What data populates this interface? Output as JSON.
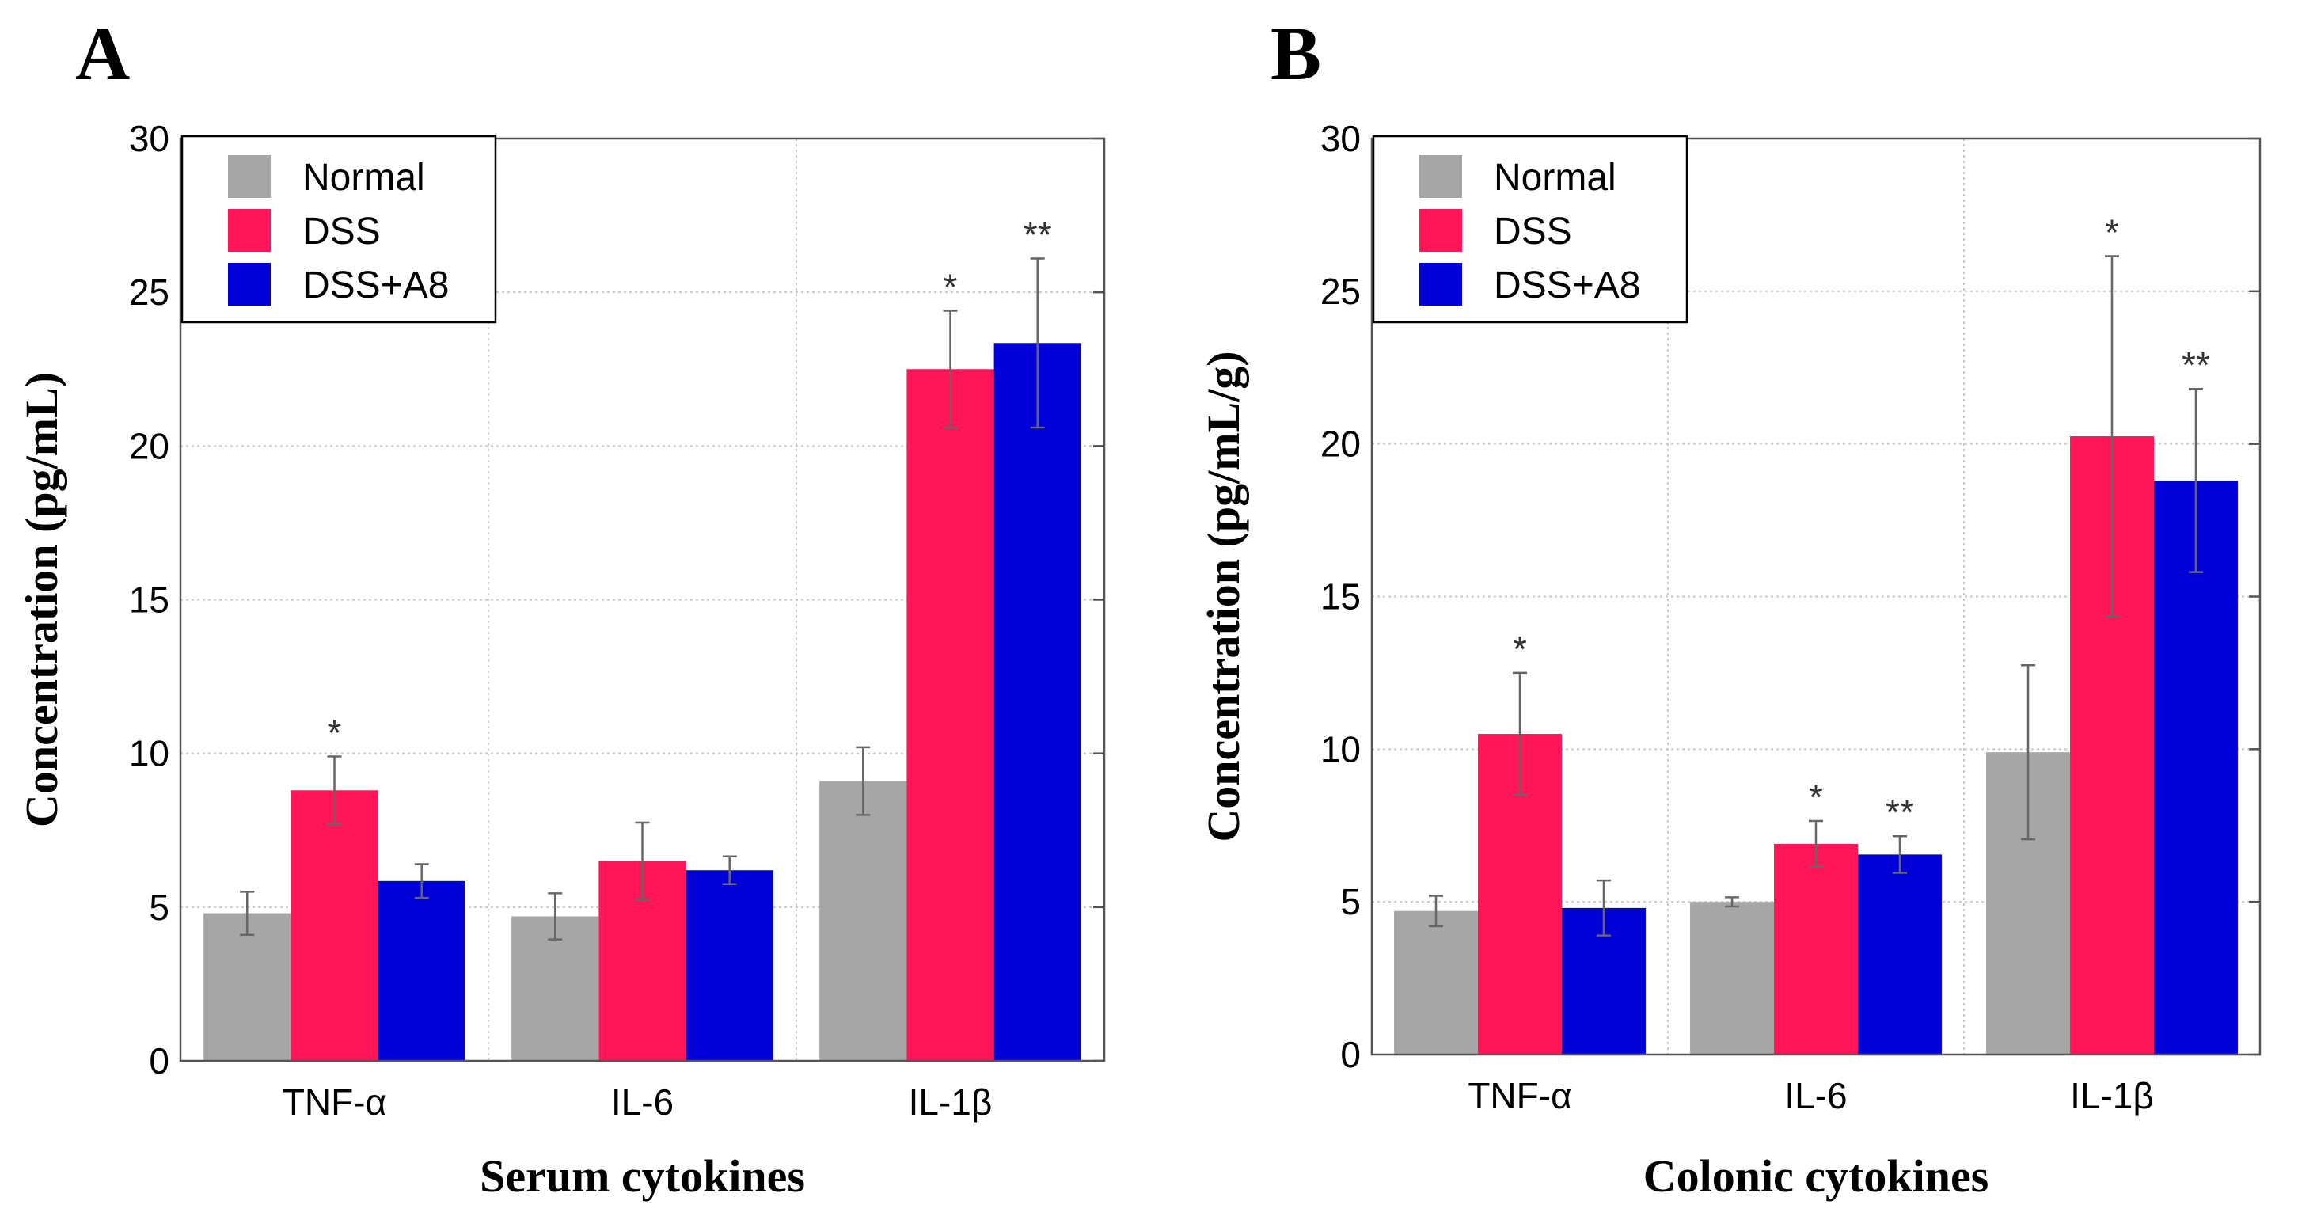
{
  "colors": {
    "Normal": "#a6a6a6",
    "DSS": "#ff1558",
    "DSS+A8": "#0000d6"
  },
  "chart_data": [
    {
      "type": "bar",
      "panel": "A",
      "xlabel": "Serum cytokines",
      "ylabel": "Concentration (pg/mL)",
      "ylim": [
        0,
        30
      ],
      "yticks": [
        0,
        5,
        10,
        15,
        20,
        25,
        30
      ],
      "grid": true,
      "legend": "top-left",
      "categories": [
        "TNF-α",
        "IL-6",
        "IL-1β"
      ],
      "series": [
        {
          "name": "Normal",
          "values": [
            4.8,
            4.7,
            9.1
          ],
          "errors": [
            0.7,
            0.75,
            1.1
          ],
          "labels": [
            "",
            "",
            ""
          ]
        },
        {
          "name": "DSS",
          "values": [
            8.8,
            6.5,
            22.5
          ],
          "errors": [
            1.1,
            1.25,
            1.9
          ],
          "labels": [
            "*",
            "",
            "*"
          ]
        },
        {
          "name": "DSS+A8",
          "values": [
            5.85,
            6.2,
            23.35
          ],
          "errors": [
            0.55,
            0.45,
            2.75
          ],
          "labels": [
            "",
            "",
            "**"
          ]
        }
      ]
    },
    {
      "type": "bar",
      "panel": "B",
      "xlabel": "Colonic cytokines",
      "ylabel": "Concentration (pg/mL/g)",
      "ylim": [
        0,
        30
      ],
      "yticks": [
        0,
        5,
        10,
        15,
        20,
        25,
        30
      ],
      "grid": true,
      "legend": "top-left",
      "categories": [
        "TNF-α",
        "IL-6",
        "IL-1β"
      ],
      "series": [
        {
          "name": "Normal",
          "values": [
            4.7,
            5.0,
            9.9
          ],
          "errors": [
            0.5,
            0.15,
            2.85
          ],
          "labels": [
            "",
            "",
            ""
          ]
        },
        {
          "name": "DSS",
          "values": [
            10.5,
            6.9,
            20.25
          ],
          "errors": [
            2.0,
            0.75,
            5.9
          ],
          "labels": [
            "*",
            "*",
            "*"
          ]
        },
        {
          "name": "DSS+A8",
          "values": [
            4.8,
            6.55,
            18.8
          ],
          "errors": [
            0.9,
            0.6,
            3.0
          ],
          "labels": [
            "",
            "**",
            "**"
          ]
        }
      ]
    }
  ]
}
